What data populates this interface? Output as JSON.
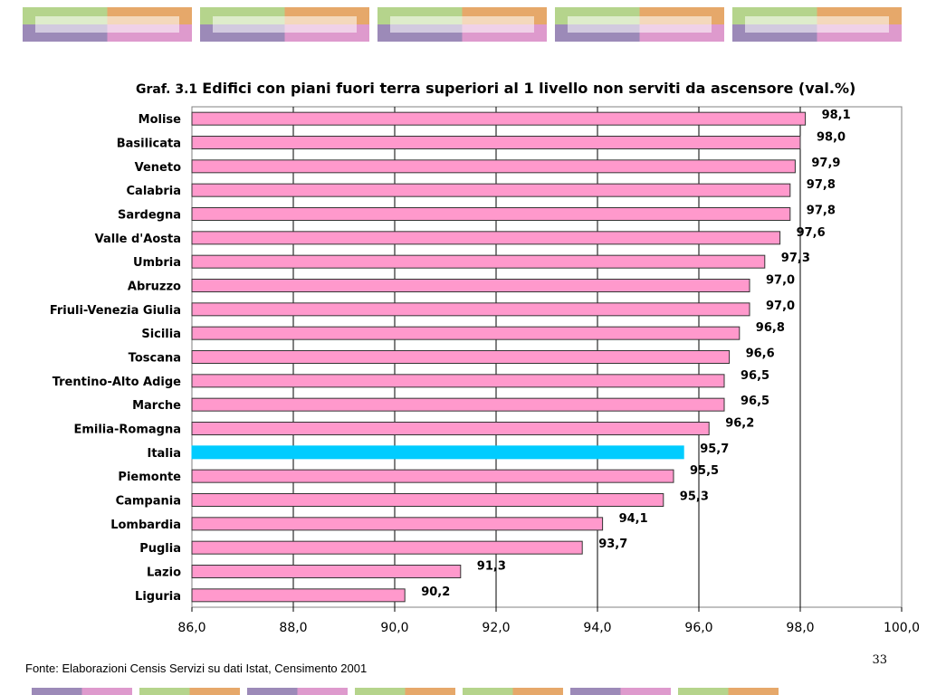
{
  "decoration": {
    "top_tiles": [
      {
        "colors": [
          "#b5d48c",
          "#e6a86a",
          "#9c8ab8",
          "#de9acd"
        ]
      },
      {
        "colors": [
          "#b5d48c",
          "#e6a86a",
          "#9c8ab8",
          "#de9acd"
        ]
      },
      {
        "colors": [
          "#b5d48c",
          "#e6a86a",
          "#9c8ab8",
          "#de9acd"
        ]
      },
      {
        "colors": [
          "#b5d48c",
          "#e6a86a",
          "#9c8ab8",
          "#de9acd"
        ]
      },
      {
        "colors": [
          "#b5d48c",
          "#e6a86a",
          "#9c8ab8",
          "#de9acd"
        ]
      }
    ],
    "bottom_tiles": [
      {
        "colors": [
          "#9c8ab8",
          "#de9acd"
        ]
      },
      {
        "colors": [
          "#b5d48c",
          "#e6a86a"
        ]
      },
      {
        "colors": [
          "#9c8ab8",
          "#de9acd"
        ]
      },
      {
        "colors": [
          "#b5d48c",
          "#e6a86a"
        ]
      },
      {
        "colors": [
          "#b5d48c",
          "#e6a86a"
        ]
      },
      {
        "colors": [
          "#9c8ab8",
          "#de9acd"
        ]
      },
      {
        "colors": [
          "#b5d48c",
          "#e6a86a"
        ]
      }
    ]
  },
  "chart_data": {
    "type": "bar",
    "orientation": "horizontal",
    "title_prefix": "Graf. 3.1",
    "title": "Edifici con piani fuori terra superiori al 1 livello non serviti da ascensore (val.%)",
    "categories": [
      "Molise",
      "Basilicata",
      "Veneto",
      "Calabria",
      "Sardegna",
      "Valle d'Aosta",
      "Umbria",
      "Abruzzo",
      "Friuli-Venezia Giulia",
      "Sicilia",
      "Toscana",
      "Trentino-Alto Adige",
      "Marche",
      "Emilia-Romagna",
      "Italia",
      "Piemonte",
      "Campania",
      "Lombardia",
      "Puglia",
      "Lazio",
      "Liguria"
    ],
    "values": [
      98.1,
      98.0,
      97.9,
      97.8,
      97.8,
      97.6,
      97.3,
      97.0,
      97.0,
      96.8,
      96.6,
      96.5,
      96.5,
      96.2,
      95.7,
      95.5,
      95.3,
      94.1,
      93.7,
      91.3,
      90.2
    ],
    "value_labels": [
      "98,1",
      "98,0",
      "97,9",
      "97,8",
      "97,8",
      "97,6",
      "97,3",
      "97,0",
      "97,0",
      "96,8",
      "96,6",
      "96,5",
      "96,5",
      "96,2",
      "95,7",
      "95,5",
      "95,3",
      "94,1",
      "93,7",
      "91,3",
      "90,2"
    ],
    "xlim": [
      86.0,
      100.0
    ],
    "x_ticks": [
      86,
      88,
      90,
      92,
      94,
      96,
      98,
      100
    ],
    "x_tick_labels": [
      "86,0",
      "88,0",
      "90,0",
      "92,0",
      "94,0",
      "96,0",
      "98,0",
      "100,0"
    ],
    "grid": "vertical",
    "bar_color": "#ff99cc",
    "highlight_category": "Italia",
    "highlight_color": "#00ccff",
    "legend": "none"
  },
  "footer": {
    "source": "Fonte: Elaborazioni Censis Servizi su dati Istat, Censimento 2001",
    "page_number": "33"
  }
}
